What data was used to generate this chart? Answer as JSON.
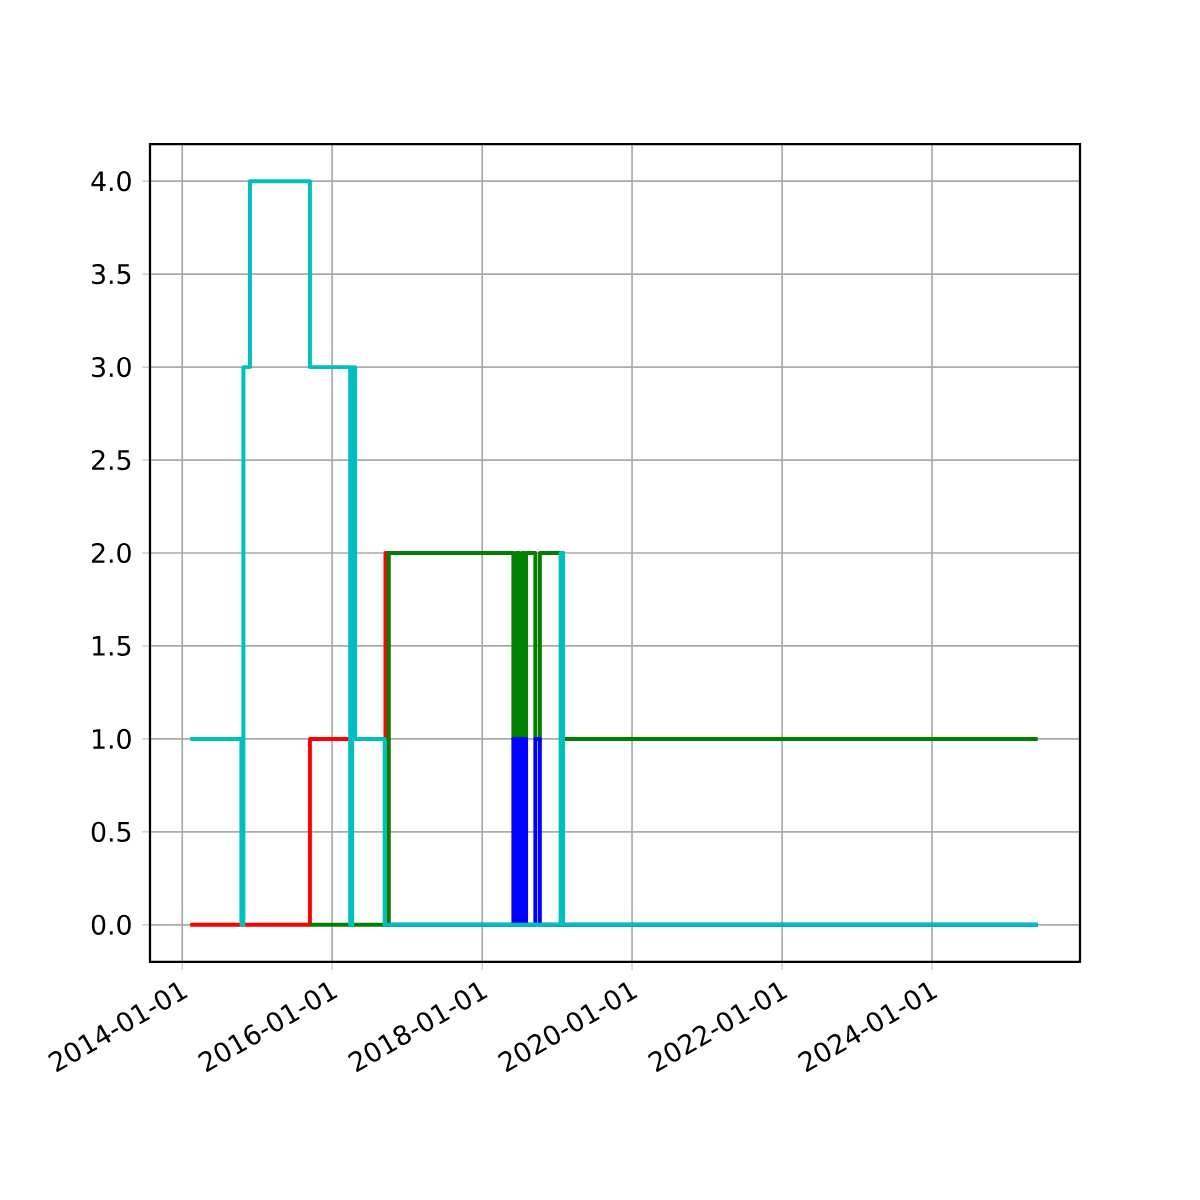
{
  "chart_data": {
    "type": "step",
    "xlim": [
      "2013-07-28",
      "2025-12-22"
    ],
    "xticks": [
      "2014-01-01",
      "2016-01-01",
      "2018-01-01",
      "2020-01-01",
      "2022-01-01",
      "2024-01-01"
    ],
    "ylim": [
      -0.2,
      4.2
    ],
    "yticks": [
      {
        "value": 0,
        "label": "0.0"
      },
      {
        "value": 0.5,
        "label": "0.5"
      },
      {
        "value": 1,
        "label": "1.0"
      },
      {
        "value": 1.5,
        "label": "1.5"
      },
      {
        "value": 2,
        "label": "2.0"
      },
      {
        "value": 2.5,
        "label": "2.5"
      },
      {
        "value": 3,
        "label": "3.0"
      },
      {
        "value": 3.5,
        "label": "3.5"
      },
      {
        "value": 4,
        "label": "4.0"
      }
    ],
    "grid": true,
    "line_style": "solid",
    "marker": "none",
    "series": [
      {
        "color": "#ff0000",
        "x": [
          "2014-02-09",
          "2015-09-15",
          "2016-09-17",
          "2016-10-02"
        ],
        "values": [
          0,
          1,
          2,
          0
        ]
      },
      {
        "color": "#008000",
        "x": [
          "2015-09-15",
          "2016-10-02",
          "2018-06-02",
          "2018-06-15",
          "2018-06-30",
          "2018-07-14",
          "2018-07-24",
          "2018-08-03",
          "2018-09-17",
          "2018-10-09",
          "2019-01-30",
          "2025-05-30"
        ],
        "values": [
          0,
          2,
          1,
          2,
          1,
          2,
          1,
          2,
          1,
          2,
          1,
          1
        ]
      },
      {
        "color": "#0000ff",
        "x": [
          "2016-09-13",
          "2018-06-02",
          "2018-06-15",
          "2018-06-30",
          "2018-07-14",
          "2018-07-24",
          "2018-08-03",
          "2018-09-17",
          "2018-10-09",
          "2025-05-30"
        ],
        "values": [
          0,
          1,
          0,
          1,
          0,
          1,
          0,
          1,
          0,
          0
        ]
      },
      {
        "color": "#00bfbf",
        "x": [
          "2014-02-09",
          "2014-10-16",
          "2014-10-26",
          "2014-11-27",
          "2015-09-15",
          "2016-03-29",
          "2016-04-08",
          "2016-04-22",
          "2016-09-13",
          "2019-01-18",
          "2019-01-30",
          "2025-05-30"
        ],
        "values": [
          1,
          0,
          3,
          4,
          3,
          0,
          3,
          1,
          0,
          2,
          0,
          0
        ]
      }
    ]
  }
}
